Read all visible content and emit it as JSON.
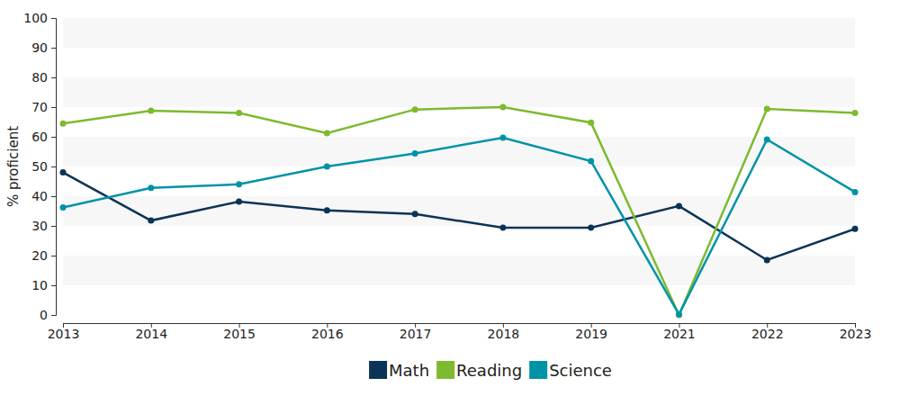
{
  "chart_data": {
    "type": "line",
    "categories": [
      "2013",
      "2014",
      "2015",
      "2016",
      "2017",
      "2018",
      "2019",
      "2021",
      "2022",
      "2023"
    ],
    "ylabel": "% proficient",
    "ylim": [
      0,
      100
    ],
    "yticks": [
      0,
      10,
      20,
      30,
      40,
      50,
      60,
      70,
      80,
      90,
      100
    ],
    "grid": true,
    "legend": "bottom",
    "marker": "circle",
    "series": [
      {
        "name": "Math",
        "color": "#0b3356",
        "values": [
          48,
          31.8,
          38.2,
          35.2,
          34,
          29.4,
          29.4,
          36.7,
          18.5,
          29
        ]
      },
      {
        "name": "Reading",
        "color": "#7dba2f",
        "values": [
          64.5,
          68.8,
          68,
          61.2,
          69.2,
          70,
          64.8,
          0,
          69.4,
          68
        ]
      },
      {
        "name": "Science",
        "color": "#0093a8",
        "values": [
          36.2,
          42.8,
          44,
          50,
          54.4,
          59.7,
          51.8,
          0.2,
          59.1,
          41.4
        ]
      }
    ]
  }
}
